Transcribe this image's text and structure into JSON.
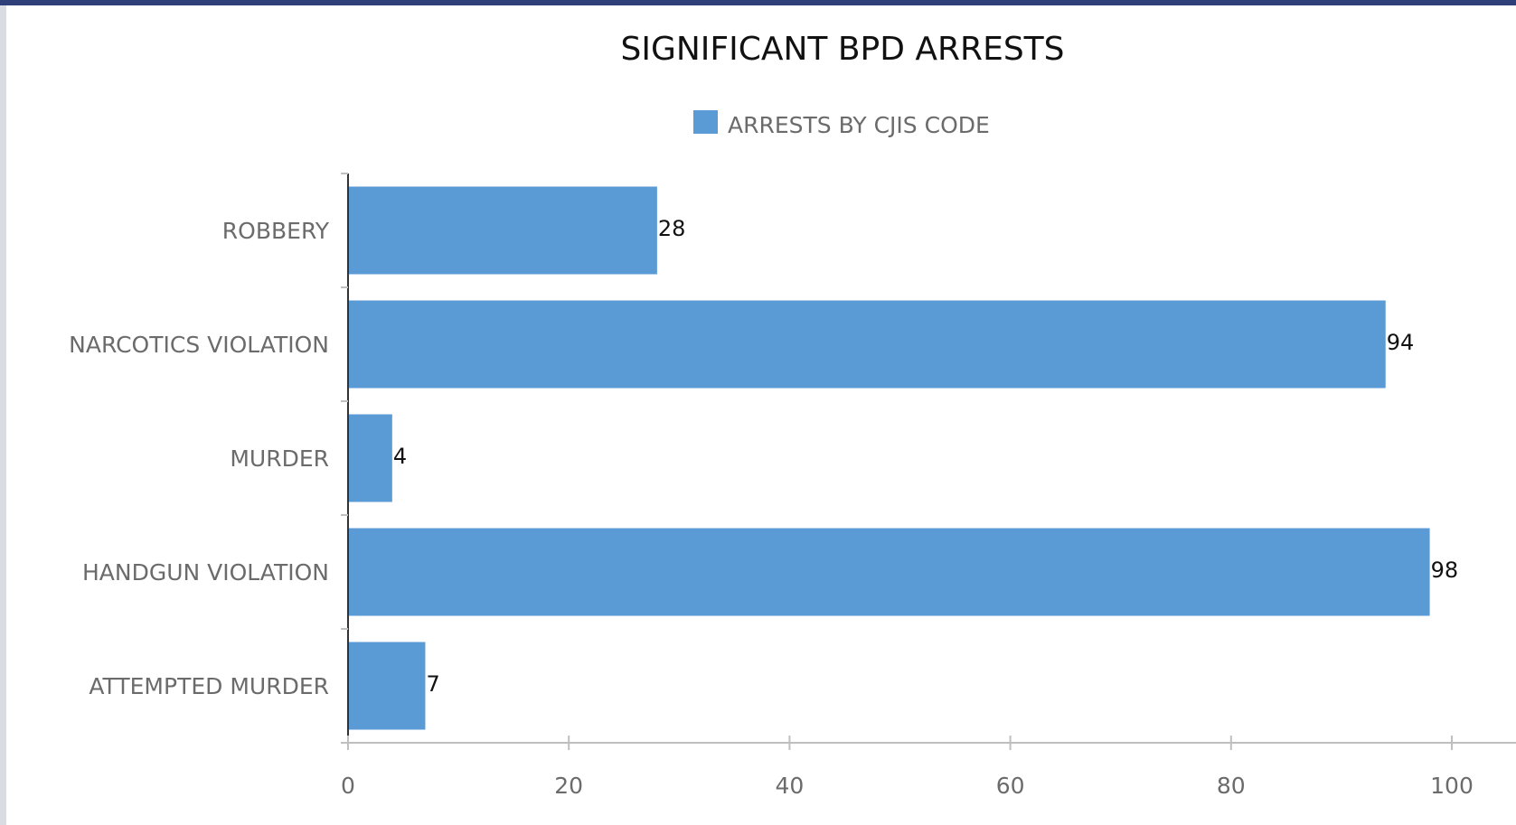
{
  "chart_data": {
    "type": "bar",
    "orientation": "horizontal",
    "title": "SIGNIFICANT BPD ARRESTS",
    "categories": [
      "ROBBERY",
      "NARCOTICS VIOLATION",
      "MURDER",
      "HANDGUN VIOLATION",
      "ATTEMPTED MURDER"
    ],
    "series": [
      {
        "name": "ARRESTS BY CJIS CODE",
        "values": [
          28,
          94,
          4,
          98,
          7
        ],
        "color": "#5b9bd5"
      }
    ],
    "xlim": [
      0,
      100
    ],
    "xticks": [
      "0",
      "20",
      "40",
      "60",
      "80",
      "100"
    ],
    "xlabel": "",
    "ylabel": "",
    "grid": false,
    "legend_position": "top-center",
    "data_labels": [
      "28",
      "94",
      "4",
      "98",
      "7"
    ],
    "colors": {
      "axis": "#bfbfbf",
      "category_axis": "#333333"
    }
  }
}
